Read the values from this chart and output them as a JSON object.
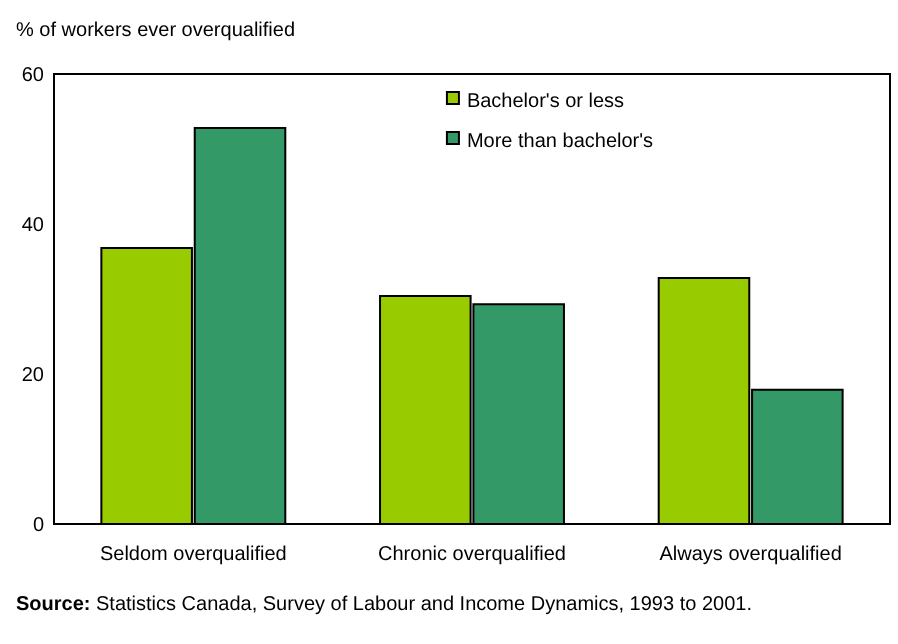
{
  "chart_data": {
    "type": "bar",
    "ylabel": "% of workers ever overqualified",
    "categories": [
      "Seldom overqualified",
      "Chronic overqualified",
      "Always overqualified"
    ],
    "series": [
      {
        "name": "Bachelor's or less",
        "color": "#99cc00",
        "values": [
          36.8,
          30.4,
          32.8
        ]
      },
      {
        "name": "More than bachelor's",
        "color": "#339966",
        "values": [
          52.8,
          29.3,
          17.9
        ]
      }
    ],
    "ylim": [
      0,
      60
    ],
    "yticks": [
      0,
      20,
      40,
      60
    ],
    "grid": false,
    "legend": "top right",
    "annotations": [
      "Source: Statistics Canada, Survey of Labour and Income Dynamics, 1993 to 2001."
    ]
  }
}
